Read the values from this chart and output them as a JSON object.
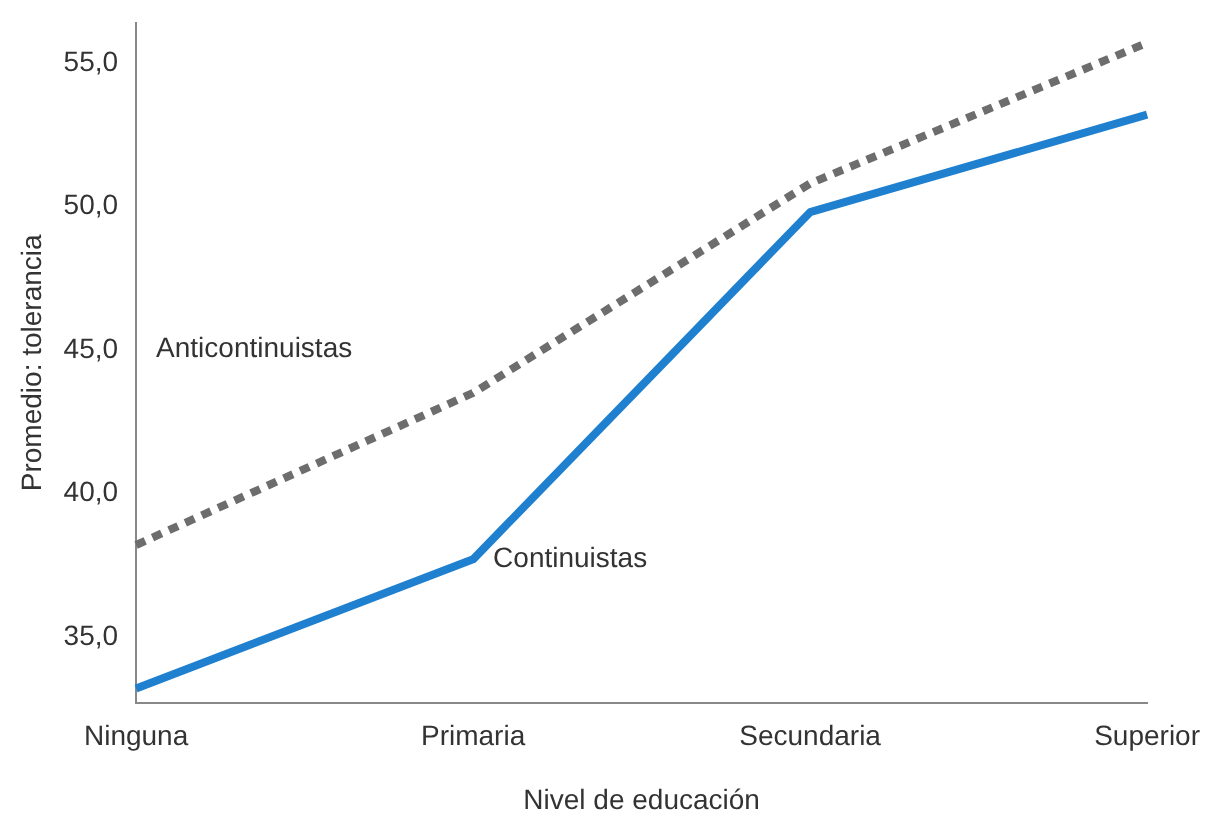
{
  "chart_data": {
    "type": "line",
    "xlabel": "Nivel de educación",
    "ylabel": "Promedio: tolerancia",
    "categories": [
      "Ninguna",
      "Primaria",
      "Secundaria",
      "Superior"
    ],
    "series": [
      {
        "name": "Anticontinuistas",
        "color": "#6d6d6d",
        "line_style": "dotted",
        "values": [
          38.2,
          43.5,
          50.8,
          55.7
        ]
      },
      {
        "name": "Continuistas",
        "color": "#1f80d0",
        "line_style": "solid",
        "values": [
          33.2,
          37.7,
          49.8,
          53.2
        ]
      }
    ],
    "ylim": [
      32.7,
      56.4
    ],
    "yticks": [
      {
        "value": 35,
        "label": "35,0"
      },
      {
        "value": 40,
        "label": "40,0"
      },
      {
        "value": 45,
        "label": "45,0"
      },
      {
        "value": 50,
        "label": "50,0"
      },
      {
        "value": 55,
        "label": "55,0"
      }
    ],
    "grid": false,
    "legend": false,
    "marker": "none"
  }
}
